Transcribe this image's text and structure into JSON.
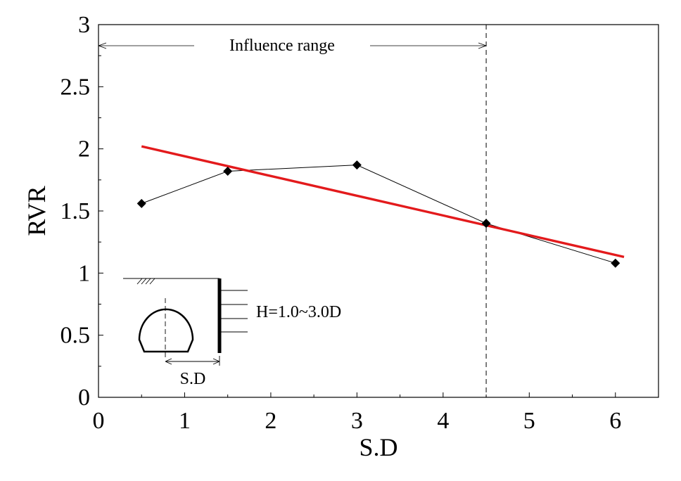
{
  "chart_data": {
    "type": "scatter",
    "title": "",
    "xlabel": "S.D",
    "ylabel": "RVR",
    "xlim": [
      0,
      6.5
    ],
    "ylim": [
      0,
      3
    ],
    "xticks": [
      0,
      1,
      2,
      3,
      4,
      5,
      6
    ],
    "xtick_labels": [
      "0",
      "1",
      "2",
      "3",
      "4",
      "5",
      "6"
    ],
    "yticks": [
      0,
      0.5,
      1,
      1.5,
      2,
      2.5,
      3
    ],
    "ytick_labels": [
      "0",
      "0.5",
      "1",
      "1.5",
      "2",
      "2.5",
      "3"
    ],
    "grid": false,
    "series": [
      {
        "name": "measured",
        "x": [
          0.5,
          1.5,
          3.0,
          4.5,
          6.0
        ],
        "y": [
          1.56,
          1.82,
          1.87,
          1.4,
          1.08
        ],
        "color": "#000000",
        "marker": "diamond"
      },
      {
        "name": "trend",
        "x": [
          0.5,
          6.1
        ],
        "y": [
          2.02,
          1.13
        ],
        "color": "#e31a1c"
      }
    ],
    "reference_line": {
      "x": 4.5,
      "style": "dashed"
    },
    "annotations": {
      "influence_range": "Influence range",
      "wall_height": "H=1.0~3.0D",
      "offset_label": "S.D"
    }
  }
}
